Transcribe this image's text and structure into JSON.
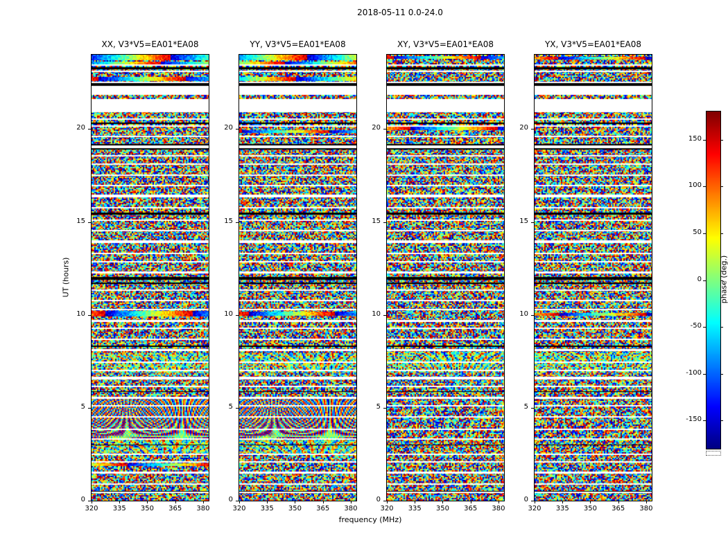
{
  "chart_data": {
    "type": "heatmap",
    "title": "2018-05-11 0.0-24.0",
    "xlabel": "frequency (MHz)",
    "ylabel": "UT (hours)",
    "x_range_mhz": [
      320,
      383
    ],
    "y_range_hours": [
      0,
      24
    ],
    "x_ticks": [
      320,
      335,
      350,
      365,
      380
    ],
    "y_ticks": [
      0,
      5,
      10,
      15,
      20
    ],
    "colorbar": {
      "label": "phase (deg.)",
      "range_deg": [
        -180,
        180
      ],
      "ticks": [
        150,
        100,
        50,
        0,
        -50,
        -100,
        -150
      ],
      "colormap": "jet"
    },
    "values_note": "Each panel is a frequency-vs-time waterfall of interferometric visibility phase; pixel values are pseudo-random phases (-180..180 deg) with coherent fringe regions, colored streaks, black flagged rows and white no-data gaps as listed below.",
    "panels": [
      {
        "title": "XX, V3*V5=EA01*EA08",
        "seed": 101,
        "fringes": [
          {
            "ut0": 3.35,
            "ut1": 5.6,
            "cycles": 13,
            "chirp": 2.4,
            "contrast": 0.8
          },
          {
            "ut0": 2.55,
            "ut1": 3.3,
            "cycles": 7,
            "chirp": 1.0,
            "contrast": 0.45
          },
          {
            "ut0": 6.95,
            "ut1": 7.95,
            "cycles": 9,
            "chirp": 1.2,
            "contrast": 0.4
          }
        ],
        "streaks": [
          [
            23.85,
            0.3
          ],
          [
            23.55,
            0.18
          ],
          [
            22.72,
            0.2
          ],
          [
            10.08,
            0.25
          ],
          [
            1.95,
            0.12
          ]
        ]
      },
      {
        "title": "YY, V3*V5=EA01*EA08",
        "seed": 202,
        "fringes": [
          {
            "ut0": 3.35,
            "ut1": 5.6,
            "cycles": 13,
            "chirp": 2.4,
            "contrast": 0.8
          },
          {
            "ut0": 2.55,
            "ut1": 3.3,
            "cycles": 7,
            "chirp": 1.0,
            "contrast": 0.45
          },
          {
            "ut0": 6.95,
            "ut1": 7.95,
            "cycles": 9,
            "chirp": 1.2,
            "contrast": 0.4
          }
        ],
        "streaks": [
          [
            23.85,
            0.3
          ],
          [
            23.55,
            0.18
          ],
          [
            22.72,
            0.2
          ],
          [
            10.05,
            0.22
          ],
          [
            19.9,
            0.1
          ]
        ]
      },
      {
        "title": "XY, V3*V5=EA01*EA08",
        "seed": 303,
        "fringes": [
          {
            "ut0": 6.95,
            "ut1": 8.0,
            "cycles": 10,
            "chirp": 1.4,
            "contrast": 0.5
          }
        ],
        "streaks": [
          [
            20.05,
            0.2
          ],
          [
            23.85,
            0.12
          ]
        ]
      },
      {
        "title": "YX, V3*V5=EA01*EA08",
        "seed": 404,
        "fringes": [
          {
            "ut0": 6.95,
            "ut1": 8.0,
            "cycles": 10,
            "chirp": 1.4,
            "contrast": 0.4
          }
        ],
        "streaks": [
          [
            23.85,
            0.1
          ],
          [
            10.05,
            0.1
          ]
        ]
      }
    ],
    "shared_features": {
      "white_gaps": [
        [
          20.9,
          21.62
        ],
        [
          21.84,
          22.32
        ]
      ],
      "white_lines": [
        [
          0.45,
          0.07
        ],
        [
          0.9,
          0.07
        ],
        [
          1.5,
          0.1
        ],
        [
          2.1,
          0.07
        ],
        [
          2.5,
          0.07
        ],
        [
          3.3,
          0.08
        ],
        [
          3.85,
          0.07
        ],
        [
          4.5,
          0.07
        ],
        [
          5.12,
          0.07
        ],
        [
          5.55,
          0.1
        ],
        [
          6.15,
          0.07
        ],
        [
          6.6,
          0.14
        ],
        [
          7.0,
          0.07
        ],
        [
          7.45,
          0.07
        ],
        [
          8.1,
          0.12
        ],
        [
          8.7,
          0.07
        ],
        [
          9.3,
          0.07
        ],
        [
          9.65,
          0.12
        ],
        [
          10.3,
          0.07
        ],
        [
          10.78,
          0.07
        ],
        [
          11.35,
          0.07
        ],
        [
          12.3,
          0.1
        ],
        [
          12.85,
          0.07
        ],
        [
          13.3,
          0.07
        ],
        [
          13.95,
          0.14
        ],
        [
          14.55,
          0.07
        ],
        [
          15.1,
          0.07
        ],
        [
          15.78,
          0.07
        ],
        [
          16.4,
          0.14
        ],
        [
          16.95,
          0.07
        ],
        [
          17.5,
          0.07
        ],
        [
          18.1,
          0.07
        ],
        [
          18.55,
          0.07
        ],
        [
          19.05,
          0.16
        ],
        [
          19.6,
          0.07
        ],
        [
          20.15,
          0.07
        ],
        [
          20.55,
          0.07
        ],
        [
          22.5,
          0.07
        ],
        [
          23.1,
          0.07
        ],
        [
          23.45,
          0.06
        ]
      ],
      "black_lines": [
        [
          23.28,
          0.1
        ],
        [
          22.42,
          0.14
        ],
        [
          20.3,
          0.07
        ],
        [
          19.18,
          0.06
        ],
        [
          18.92,
          0.08
        ],
        [
          15.45,
          0.1
        ],
        [
          11.95,
          0.14
        ],
        [
          11.72,
          0.06
        ],
        [
          8.3,
          0.06
        ],
        [
          5.85,
          0.05
        ],
        [
          3.0,
          0.05
        ],
        [
          0.5,
          0.05
        ]
      ]
    }
  }
}
